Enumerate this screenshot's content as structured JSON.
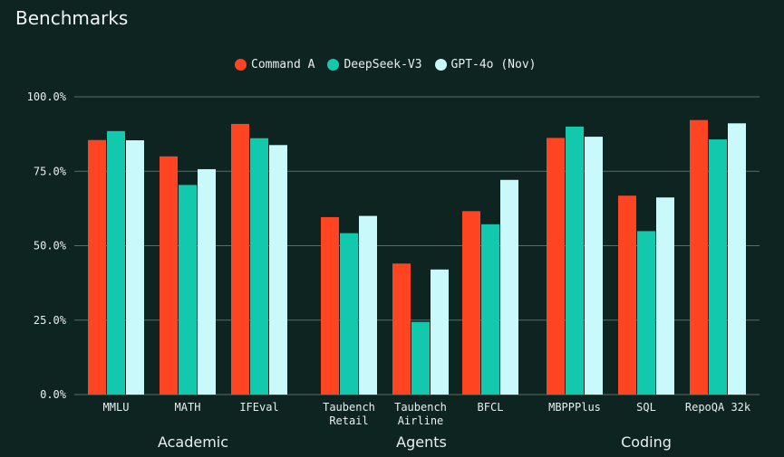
{
  "title": "Benchmarks",
  "colors": {
    "background": "#0e2420",
    "grid": "#5a6b68",
    "text": "#e8f0ee"
  },
  "chart_data": {
    "type": "bar",
    "title": "Benchmarks",
    "xlabel": "",
    "ylabel": "",
    "ylim": [
      0,
      100
    ],
    "yticks": [
      "0.0%",
      "25.0%",
      "50.0%",
      "75.0%",
      "100.0%"
    ],
    "grid": true,
    "legend_position": "top-center",
    "categories": [
      "MMLU",
      "MATH",
      "IFEval",
      "Taubench\nRetail",
      "Taubench\nAirline",
      "BFCL",
      "MBPPPlus",
      "SQL",
      "RepoQA 32k"
    ],
    "groups": [
      {
        "label": "Academic",
        "categories": [
          "MMLU",
          "MATH",
          "IFEval"
        ]
      },
      {
        "label": "Agents",
        "categories": [
          "Taubench\nRetail",
          "Taubench\nAirline",
          "BFCL"
        ]
      },
      {
        "label": "Coding",
        "categories": [
          "MBPPPlus",
          "SQL",
          "RepoQA 32k"
        ]
      }
    ],
    "series": [
      {
        "name": "Command A",
        "color": "#ff4422",
        "values": [
          85.5,
          80.0,
          90.9,
          59.6,
          44.0,
          61.6,
          86.2,
          66.8,
          92.2
        ]
      },
      {
        "name": "DeepSeek-V3",
        "color": "#12c9ae",
        "values": [
          88.5,
          70.4,
          86.1,
          54.2,
          24.4,
          57.2,
          90.0,
          54.9,
          85.7
        ]
      },
      {
        "name": "GPT-4o (Nov)",
        "color": "#c9f9fb",
        "values": [
          85.4,
          75.7,
          83.8,
          60.0,
          42.0,
          72.1,
          86.6,
          66.2,
          91.1
        ]
      }
    ]
  }
}
